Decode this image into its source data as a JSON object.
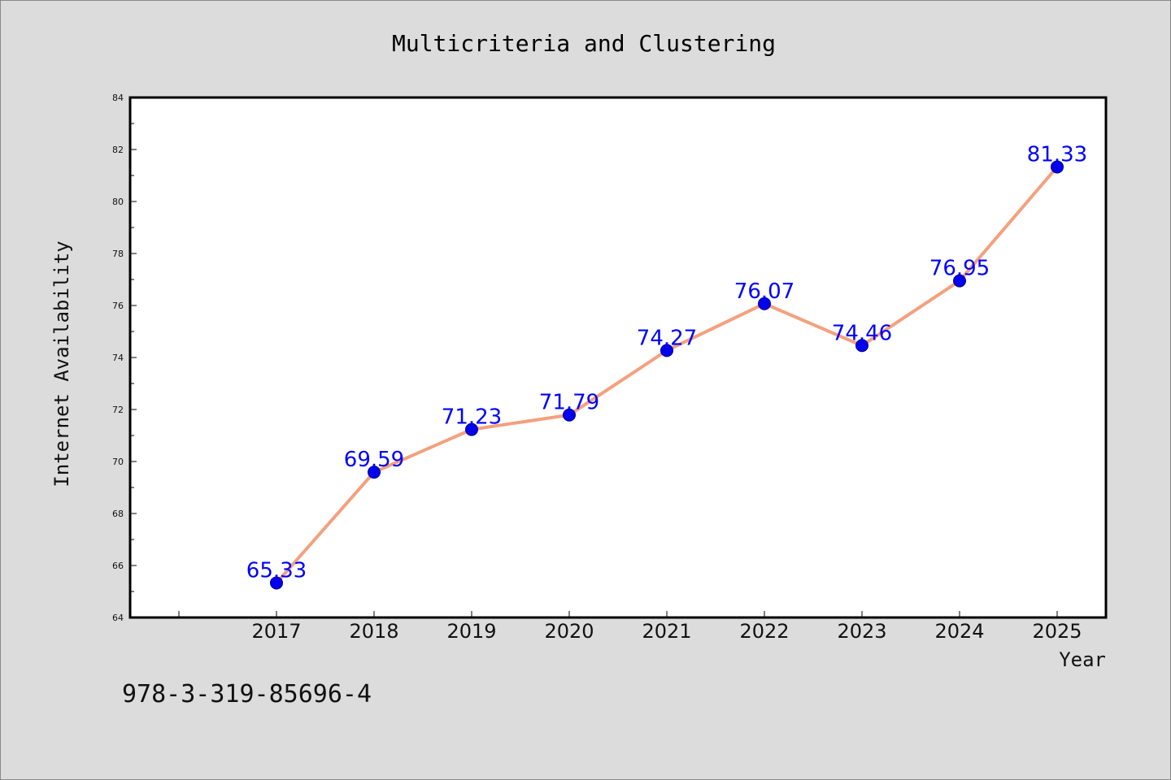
{
  "chart_data": {
    "type": "line",
    "title": "Multicriteria and Clustering",
    "xlabel": "Year",
    "ylabel": "Internet Availability",
    "categories": [
      "2017",
      "2018",
      "2019",
      "2020",
      "2021",
      "2022",
      "2023",
      "2024",
      "2025"
    ],
    "series": [
      {
        "values": [
          65.33,
          69.59,
          71.23,
          71.79,
          74.27,
          76.07,
          74.46,
          76.95,
          81.33
        ],
        "labels": [
          "65.33",
          "69.59",
          "71.23",
          "71.79",
          "74.27",
          "76.07",
          "74.46",
          "76.95",
          "81.33"
        ]
      }
    ],
    "ylim": [
      64,
      84
    ],
    "yticks": [
      "64",
      "66",
      "68",
      "70",
      "72",
      "74",
      "76",
      "78",
      "80",
      "82",
      "84"
    ],
    "grid": false,
    "line_color": "#f4a07e",
    "marker_color": "#0000ee",
    "label_color": "#0000ff"
  },
  "footnote": "978-3-319-85696-4"
}
